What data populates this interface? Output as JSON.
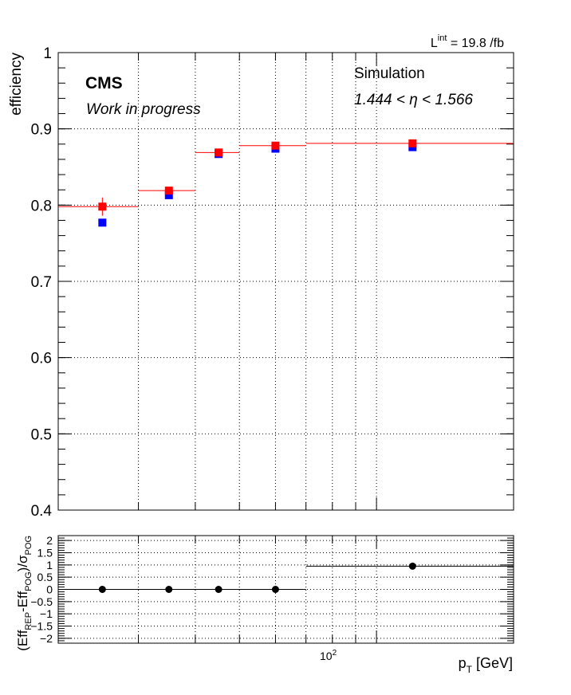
{
  "chart_data": [
    {
      "type": "scatter",
      "x_scale": "log",
      "xlim": [
        20,
        200
      ],
      "ylim": [
        0.4,
        1.0
      ],
      "ylabel": "efficiency",
      "yticks": [
        "0.4",
        "0.5",
        "0.6",
        "0.7",
        "0.8",
        "0.9",
        "1"
      ],
      "grid": true,
      "lumi_label": "L",
      "lumi_sup": "int",
      "lumi_value": " = 19.8 /fb",
      "cms_label": "CMS",
      "wip_label": "Work in progress",
      "sim_label": "Simulation",
      "eta_label": "1.444 < η < 1.566",
      "series": [
        {
          "color": "#0000ff",
          "marker": "square",
          "points": [
            {
              "x": 25,
              "y": 0.777
            },
            {
              "x": 35,
              "y": 0.813
            },
            {
              "x": 45,
              "y": 0.867
            },
            {
              "x": 60,
              "y": 0.874
            },
            {
              "x": 120,
              "y": 0.876
            }
          ]
        },
        {
          "color": "#ff0000",
          "marker": "square",
          "points": [
            {
              "x": 25,
              "x_low": 20,
              "x_high": 30,
              "y": 0.798,
              "y_err": 0.012
            },
            {
              "x": 35,
              "x_low": 30,
              "x_high": 40,
              "y": 0.819,
              "y_err": 0.005
            },
            {
              "x": 45,
              "x_low": 40,
              "x_high": 50,
              "y": 0.869,
              "y_err": 0.004
            },
            {
              "x": 60,
              "x_low": 50,
              "x_high": 70,
              "y": 0.878,
              "y_err": 0.004
            },
            {
              "x": 120,
              "x_low": 70,
              "x_high": 200,
              "y": 0.881,
              "y_err": 0.004
            }
          ]
        }
      ]
    },
    {
      "type": "scatter",
      "x_scale": "log",
      "xlim": [
        20,
        200
      ],
      "ylim": [
        -2.2,
        2.2
      ],
      "xtick_label": "10",
      "xtick_label_exp": "2",
      "xlabel_main": "p",
      "xlabel_sub": "T",
      "xlabel_unit": " [GeV]",
      "ylabel_parts": {
        "open": "(Eff",
        "sub1": "REP",
        "mid": "-Eff",
        "sub2": "POG",
        "close": ")/σ",
        "sub3": "POG"
      },
      "yticks": [
        "−2",
        "−1.5",
        "−1",
        "−0.5",
        "0",
        "0.5",
        "1",
        "1.5",
        "2"
      ],
      "grid": true,
      "series": [
        {
          "color": "#000000",
          "marker": "circle",
          "points": [
            {
              "x": 25,
              "x_low": 20,
              "x_high": 30,
              "y": 0.0
            },
            {
              "x": 35,
              "x_low": 30,
              "x_high": 40,
              "y": 0.0
            },
            {
              "x": 45,
              "x_low": 40,
              "x_high": 50,
              "y": 0.0
            },
            {
              "x": 60,
              "x_low": 50,
              "x_high": 70,
              "y": 0.0
            },
            {
              "x": 120,
              "x_low": 70,
              "x_high": 200,
              "y": 0.95
            }
          ]
        }
      ]
    }
  ]
}
